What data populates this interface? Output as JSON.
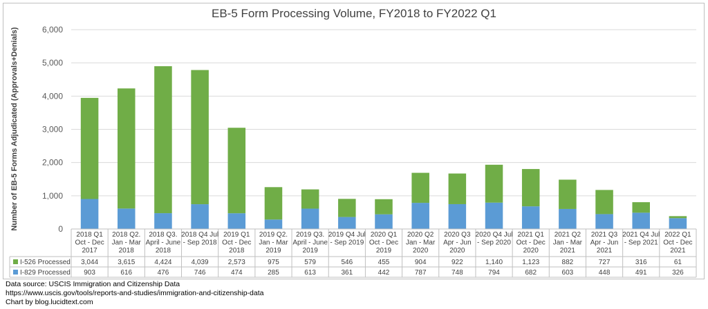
{
  "chart_data": {
    "type": "bar",
    "stacked": true,
    "title": "EB-5 Form Processing Volume, FY2018 to FY2022 Q1",
    "ylabel": "Number of EB-5 Forms Adjudicated (Approvals+Denials)",
    "ylim": [
      0,
      6000
    ],
    "yticks": [
      "0",
      "1,000",
      "2,000",
      "3,000",
      "4,000",
      "5,000",
      "6,000"
    ],
    "grid": true,
    "categories": [
      [
        "2018 Q1",
        "Oct - Dec",
        "2017"
      ],
      [
        "2018 Q2.",
        "Jan - Mar",
        "2018"
      ],
      [
        "2018 Q3.",
        "April - June",
        "2018"
      ],
      [
        "2018 Q4 Jul",
        "- Sep 2018"
      ],
      [
        "2019  Q1",
        "Oct - Dec",
        "2018"
      ],
      [
        "2019 Q2.",
        "Jan - Mar",
        "2019"
      ],
      [
        "2019 Q3.",
        "April - June",
        "2019"
      ],
      [
        "2019 Q4 Jul",
        "- Sep 2019"
      ],
      [
        "2020  Q1",
        "Oct - Dec",
        "2019"
      ],
      [
        "2020 Q2",
        "Jan - Mar",
        "2020"
      ],
      [
        "2020 Q3",
        "Apr - Jun",
        "2020"
      ],
      [
        "2020 Q4 Jul",
        "- Sep 2020"
      ],
      [
        "2021 Q1",
        "Oct - Dec",
        "2020"
      ],
      [
        "2021 Q2",
        "Jan - Mar",
        "2021"
      ],
      [
        "2021 Q3",
        "Apr - Jun",
        "2021"
      ],
      [
        "2021 Q4 Jul",
        "- Sep 2021"
      ],
      [
        "2022 Q1",
        "Oct - Dec",
        "2021"
      ]
    ],
    "series": [
      {
        "name": "I-829 Processed",
        "color": "#5b9bd5",
        "values": [
          903,
          616,
          476,
          746,
          474,
          285,
          613,
          361,
          442,
          787,
          748,
          794,
          682,
          603,
          448,
          491,
          326
        ],
        "labels": [
          "903",
          "616",
          "476",
          "746",
          "474",
          "285",
          "613",
          "361",
          "442",
          "787",
          "748",
          "794",
          "682",
          "603",
          "448",
          "491",
          "326"
        ]
      },
      {
        "name": "I-526 Processed",
        "color": "#70ad47",
        "values": [
          3044,
          3615,
          4424,
          4039,
          2573,
          975,
          579,
          546,
          455,
          904,
          922,
          1140,
          1123,
          882,
          727,
          316,
          61
        ],
        "labels": [
          "3,044",
          "3,615",
          "4,424",
          "4,039",
          "2,573",
          "975",
          "579",
          "546",
          "455",
          "904",
          "922",
          "1,140",
          "1,123",
          "882",
          "727",
          "316",
          "61"
        ]
      }
    ],
    "table_row_order": [
      "I-526 Processed",
      "I-829 Processed"
    ]
  },
  "footer": {
    "line1": "Data source: USCIS Immigration and Citizenship Data",
    "line2": "https://www.uscis.gov/tools/reports-and-studies/immigration-and-citizenship-data",
    "line3": "Chart by blog.lucidtext.com"
  }
}
